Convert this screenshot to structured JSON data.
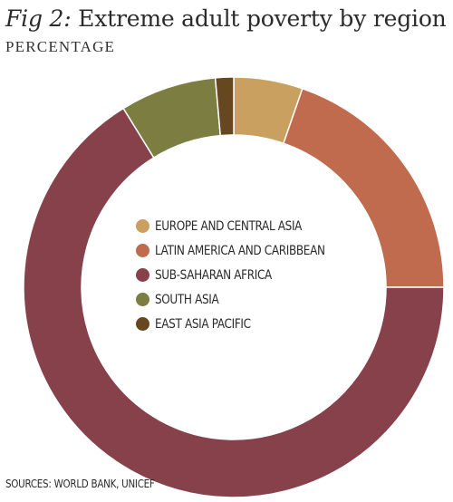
{
  "header": {
    "fig_label": "Fig 2:",
    "title": "Extreme adult poverty by region",
    "subtitle": "PERCENTAGE"
  },
  "source": "SOURCES: WORLD BANK, UNICEF",
  "chart_data": {
    "type": "pie",
    "donut": true,
    "categories": [
      "EUROPE AND CENTRAL ASIA",
      "LATIN AMERICA AND CARIBBEAN",
      "SUB-SAHARAN AFRICA",
      "SOUTH ASIA",
      "EAST ASIA PACIFIC"
    ],
    "values": [
      5.3,
      19.7,
      66.2,
      7.4,
      1.4
    ],
    "colors": [
      "#c9a05f",
      "#c06a4e",
      "#87414b",
      "#7b7d41",
      "#664720"
    ],
    "legend_position": "center"
  }
}
